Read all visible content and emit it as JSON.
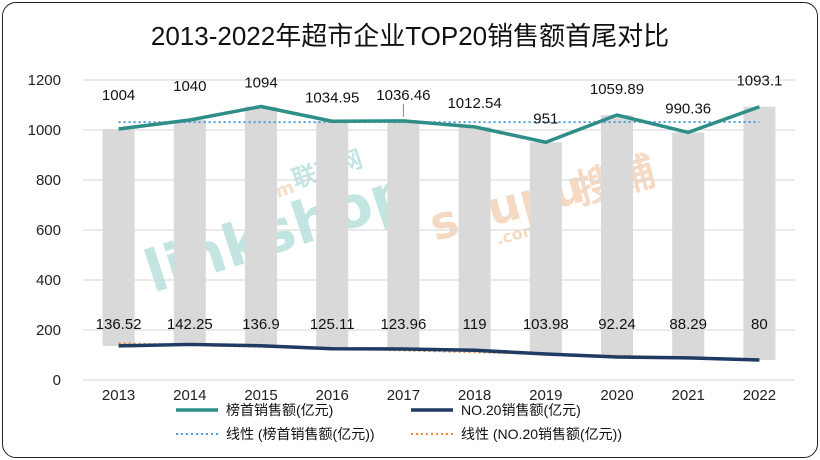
{
  "chart_data": {
    "type": "bar+line",
    "title": "2013-2022年超市企业TOP20销售额首尾对比",
    "categories": [
      "2013",
      "2014",
      "2015",
      "2016",
      "2017",
      "2018",
      "2019",
      "2020",
      "2021",
      "2022"
    ],
    "series": [
      {
        "name": "榜首销售额(亿元)",
        "kind": "bar+line",
        "color": "#2f8f88",
        "values": [
          1004,
          1040,
          1094,
          1034.95,
          1036.46,
          1012.54,
          951,
          1059.89,
          990.36,
          1093.1
        ],
        "labels": [
          "1004",
          "1040",
          "1094",
          "1034.95",
          "1036.46",
          "1012.54",
          "951",
          "1059.89",
          "990.36",
          "1093.1"
        ]
      },
      {
        "name": "NO.20销售额(亿元)",
        "kind": "bar+line",
        "color": "#1f3b63",
        "values": [
          136.52,
          142.25,
          136.9,
          125.11,
          123.96,
          119,
          103.98,
          92.24,
          88.29,
          80
        ],
        "labels": [
          "136.52",
          "142.25",
          "136.9",
          "125.11",
          "123.96",
          "119",
          "103.98",
          "92.24",
          "88.29",
          "80"
        ]
      }
    ],
    "trendlines": [
      {
        "name": "线性 (榜首销售额(亿元))",
        "color": "#4f9bd9",
        "style": "dotted"
      },
      {
        "name": "线性 (NO.20销售额(亿元))",
        "color": "#e8883a",
        "style": "dotted"
      }
    ],
    "ylim": [
      0,
      1200
    ],
    "yticks": [
      "0",
      "200",
      "400",
      "600",
      "800",
      "1000",
      "1200"
    ],
    "bar_color": "#d9d9d9",
    "grid": true,
    "legend_position": "bottom"
  },
  "watermarks": {
    "linkshop": "linkshop",
    "linkshop_com": ".com",
    "linkshop_cn": "联商网",
    "soupu": "soupu",
    "soupu_com": ".com",
    "soupu_cn": "搜铺"
  }
}
